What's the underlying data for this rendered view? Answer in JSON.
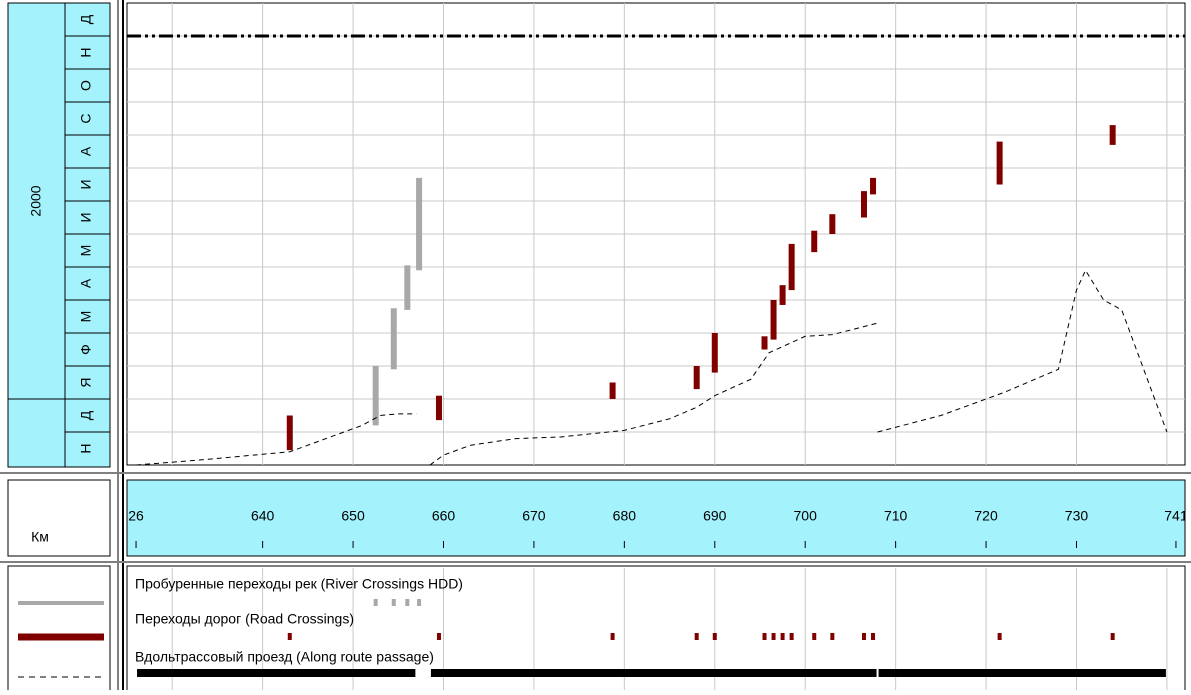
{
  "chart_data": {
    "type": "timechainage",
    "x_label": "Км",
    "xlim": [
      625,
      742
    ],
    "ylim": [
      0,
      14
    ],
    "xticks": [
      {
        "value": 626,
        "label": "26"
      },
      640,
      650,
      660,
      670,
      680,
      690,
      700,
      710,
      720,
      730,
      741
    ],
    "xgrid": [
      630,
      640,
      650,
      660,
      670,
      680,
      690,
      700,
      710,
      720,
      730,
      740
    ],
    "ygrid": [
      1,
      2,
      3,
      4,
      5,
      6,
      7,
      8,
      9,
      10,
      11,
      12,
      13
    ],
    "months": [
      "Н",
      "Д",
      "Я",
      "Ф",
      "М",
      "А",
      "М",
      "И",
      "И",
      "А",
      "С",
      "О",
      "Н",
      "Д"
    ],
    "years": [
      {
        "label": "2000",
        "from": 2,
        "to": 14
      }
    ],
    "top_line": 13,
    "series": [
      {
        "name": "Пробуренные переходы рек (River Crossings HDD)",
        "color": "#a8a8a8",
        "style": "bar",
        "x": [
          652.5,
          654.5,
          656,
          657.3
        ],
        "y_start": [
          1.2,
          2.9,
          4.7,
          5.9
        ],
        "y_end": [
          3.0,
          4.75,
          6.05,
          8.7
        ]
      },
      {
        "name": "Переходы дорог (Road Crossings)",
        "color": "#800000",
        "style": "bar",
        "x": [
          643,
          659.5,
          678.7,
          688,
          690,
          695.5,
          696.5,
          697.5,
          698.5,
          701,
          703,
          706.5,
          707.5,
          721.5,
          734
        ],
        "y_start": [
          0.45,
          1.36,
          2.0,
          2.3,
          2.8,
          3.5,
          3.8,
          4.85,
          5.3,
          6.45,
          7.0,
          7.5,
          8.2,
          8.5,
          9.7
        ],
        "y_end": [
          1.5,
          2.1,
          2.5,
          3.0,
          4.0,
          3.9,
          5.0,
          5.45,
          6.7,
          7.1,
          7.6,
          8.3,
          8.7,
          9.8,
          10.3
        ]
      },
      {
        "name": "Вдольтрассовый проезд (Along route passage)",
        "color": "#000000",
        "style": "dashed",
        "x": [
          626,
          633,
          643,
          648,
          651,
          653,
          655,
          657,
          null,
          658.5,
          660,
          663,
          668,
          673,
          680,
          685,
          688,
          690,
          694,
          696,
          700,
          703,
          708,
          null,
          708,
          715,
          722,
          728,
          730,
          731,
          733,
          735,
          740
        ],
        "values": [
          0,
          0.15,
          0.4,
          0.9,
          1.2,
          1.5,
          1.55,
          1.55,
          null,
          0,
          0.3,
          0.6,
          0.8,
          0.85,
          1.05,
          1.4,
          1.75,
          2.1,
          2.6,
          3.4,
          3.9,
          3.95,
          4.3,
          null,
          1.0,
          1.5,
          2.2,
          2.9,
          5.3,
          5.9,
          5.0,
          4.7,
          1.0
        ]
      }
    ]
  }
}
